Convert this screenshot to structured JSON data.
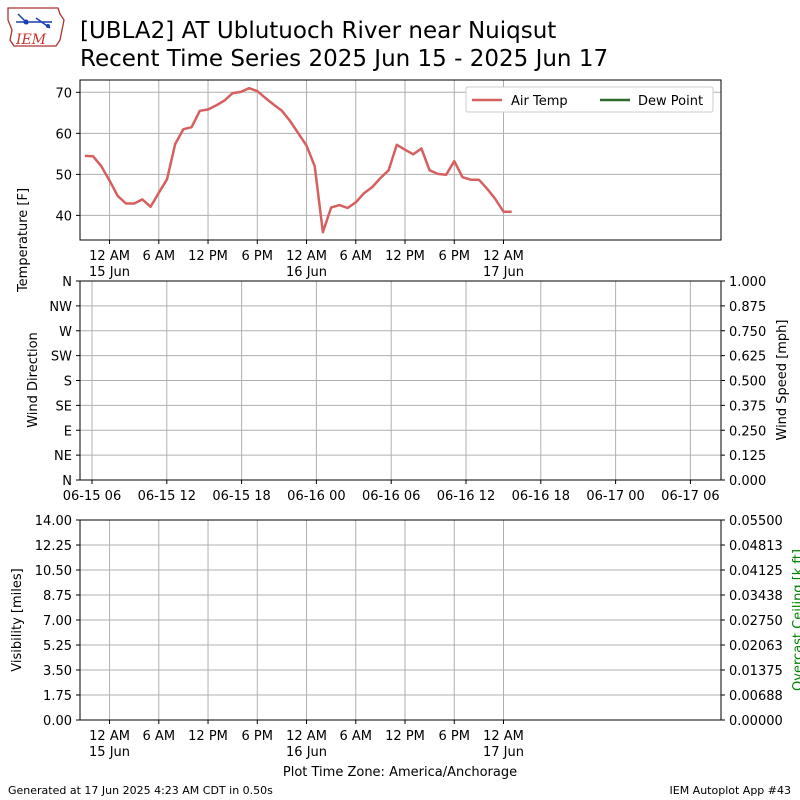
{
  "header": {
    "logo_text": "IEM",
    "title_line1": "[UBLA2] AT Ublutuoch River near Nuiqsut",
    "title_line2": "Recent Time Series 2025 Jun 15 - 2025 Jun 17"
  },
  "footer": {
    "generated": "Generated at 17 Jun 2025 4:23 AM CDT in 0.50s",
    "app": "IEM Autoplot App #43",
    "xlabel": "Plot Time Zone: America/Anchorage"
  },
  "colors": {
    "air_temp": "#d65f5f",
    "dew_point": "#2d6a2d",
    "ceiling_label": "#008000"
  },
  "chart_data": [
    {
      "type": "line",
      "ylabel": "Temperature [F]",
      "ylim": [
        34,
        73
      ],
      "xlim": [
        -3.6,
        74.5
      ],
      "yticks": [
        40,
        50,
        60,
        70
      ],
      "grid": true,
      "legend_position": "top-right",
      "legend_columns": 2,
      "x_unit": "hours since 15 Jun 12 AM",
      "xticks": [
        {
          "x": 0,
          "line1": "12 AM",
          "line2": "15 Jun"
        },
        {
          "x": 6,
          "line1": "6 AM",
          "line2": ""
        },
        {
          "x": 12,
          "line1": "12 PM",
          "line2": ""
        },
        {
          "x": 18,
          "line1": "6 PM",
          "line2": ""
        },
        {
          "x": 24,
          "line1": "12 AM",
          "line2": "16 Jun"
        },
        {
          "x": 30,
          "line1": "6 AM",
          "line2": ""
        },
        {
          "x": 36,
          "line1": "12 PM",
          "line2": ""
        },
        {
          "x": 42,
          "line1": "6 PM",
          "line2": ""
        },
        {
          "x": 48,
          "line1": "12 AM",
          "line2": "17 Jun"
        }
      ],
      "series": [
        {
          "name": "Air Temp",
          "x": [
            -3,
            -2,
            -1,
            0,
            1,
            2,
            3,
            4,
            5,
            6,
            7,
            8,
            9,
            10,
            11,
            12,
            13,
            14,
            15,
            16,
            17,
            18,
            19,
            20,
            21,
            22,
            23,
            24,
            25,
            26,
            27,
            28,
            29,
            30,
            31,
            32,
            33,
            34,
            35,
            36,
            37,
            38,
            39,
            40,
            41,
            42,
            43,
            44,
            45,
            46,
            47,
            48,
            49
          ],
          "values": [
            54.5,
            54.4,
            52.0,
            48.5,
            44.7,
            42.9,
            42.9,
            43.9,
            42.1,
            45.5,
            48.8,
            57.4,
            61.0,
            61.5,
            65.5,
            65.8,
            66.8,
            68.0,
            69.8,
            70.1,
            71.0,
            70.3,
            68.6,
            67.0,
            65.5,
            63.0,
            60.0,
            57.0,
            52.0,
            35.9,
            41.9,
            42.5,
            41.8,
            43.2,
            45.4,
            46.9,
            49.1,
            51.0,
            57.2,
            56.0,
            54.9,
            56.3,
            51.0,
            50.1,
            49.9,
            53.2,
            49.3,
            48.7,
            48.7,
            46.5,
            44.0,
            40.9,
            40.9
          ]
        },
        {
          "name": "Dew Point",
          "x": [],
          "values": []
        }
      ]
    },
    {
      "type": "line",
      "ylabel": "Wind Direction",
      "y2label": "Wind Speed [mph]",
      "yticks": [
        "N",
        "NE",
        "E",
        "SE",
        "S",
        "SW",
        "W",
        "NW",
        "N"
      ],
      "y2ticks": [
        "0.000",
        "0.125",
        "0.250",
        "0.375",
        "0.500",
        "0.625",
        "0.750",
        "0.875",
        "1.000"
      ],
      "y2lim": [
        0,
        1
      ],
      "grid": true,
      "xticks": [
        "06-15 06",
        "06-15 12",
        "06-15 18",
        "06-16 00",
        "06-16 06",
        "06-16 12",
        "06-16 18",
        "06-17 00",
        "06-17 06"
      ],
      "series": []
    },
    {
      "type": "line",
      "ylabel": "Visibility [miles]",
      "y2label": "Overcast Ceiling [k ft]",
      "ylim": [
        0,
        14
      ],
      "y2lim": [
        0,
        0.055
      ],
      "yticks": [
        "0.00",
        "1.75",
        "3.50",
        "5.25",
        "7.00",
        "8.75",
        "10.50",
        "12.25",
        "14.00"
      ],
      "y2ticks": [
        "0.00000",
        "0.00688",
        "0.01375",
        "0.02063",
        "0.02750",
        "0.03438",
        "0.04125",
        "0.04813",
        "0.05500"
      ],
      "grid": true,
      "xticks": [
        {
          "line1": "12 AM",
          "line2": "15 Jun"
        },
        {
          "line1": "6 AM",
          "line2": ""
        },
        {
          "line1": "12 PM",
          "line2": ""
        },
        {
          "line1": "6 PM",
          "line2": ""
        },
        {
          "line1": "12 AM",
          "line2": "16 Jun"
        },
        {
          "line1": "6 AM",
          "line2": ""
        },
        {
          "line1": "12 PM",
          "line2": ""
        },
        {
          "line1": "6 PM",
          "line2": ""
        },
        {
          "line1": "12 AM",
          "line2": "17 Jun"
        }
      ],
      "series": []
    }
  ]
}
